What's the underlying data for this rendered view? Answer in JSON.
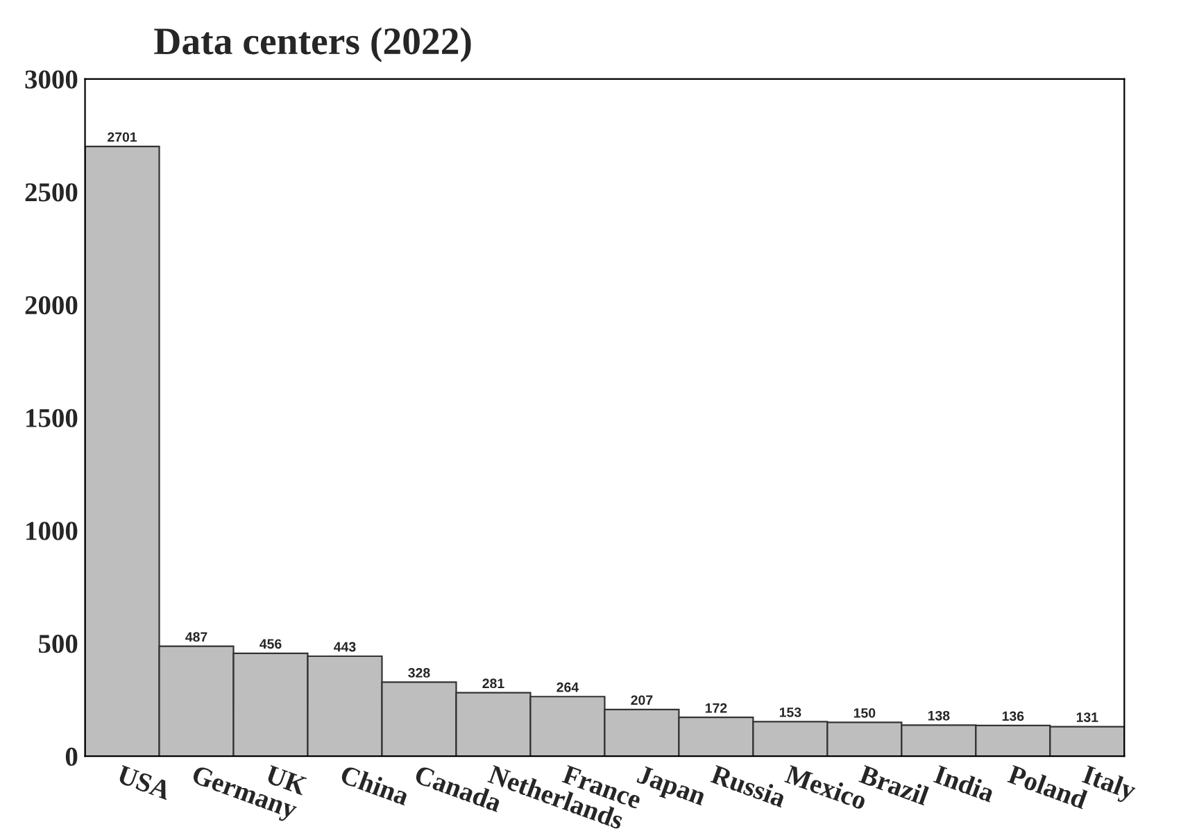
{
  "chart_data": {
    "type": "bar",
    "title": "Data centers (2022)",
    "categories": [
      "USA",
      "Germany",
      "UK",
      "China",
      "Canada",
      "Netherlands",
      "France",
      "Japan",
      "Russia",
      "Mexico",
      "Brazil",
      "India",
      "Poland",
      "Italy"
    ],
    "values": [
      2701,
      487,
      456,
      443,
      328,
      281,
      264,
      207,
      172,
      153,
      150,
      138,
      136,
      131
    ],
    "color": "#bebebe",
    "ylim": [
      0,
      3000
    ],
    "yticks": [
      0,
      500,
      1000,
      1500,
      2000,
      2500,
      3000
    ],
    "data_labels": true,
    "grid": false,
    "legend": false
  }
}
